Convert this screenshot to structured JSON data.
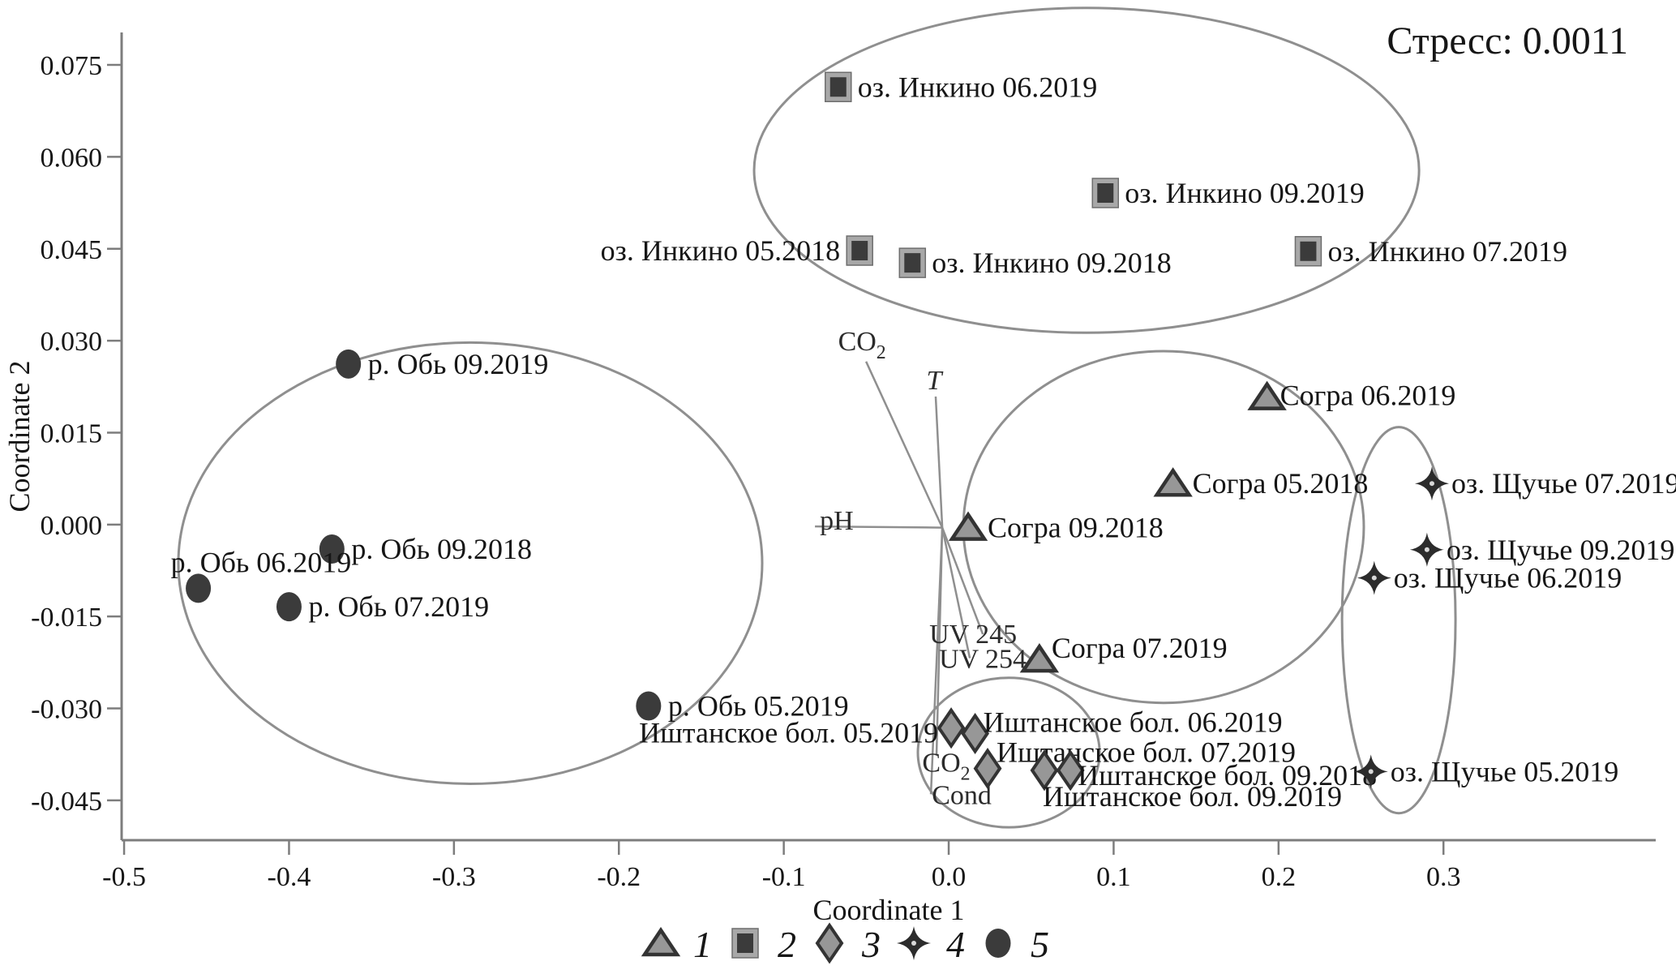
{
  "chart_data": {
    "type": "scatter",
    "stress_label": "Стресс: 0.0011",
    "xlabel": "Coordinate 1",
    "ylabel": "Coordinate 2",
    "x_domain": [
      -0.5015,
      0.4287
    ],
    "y_domain": [
      -0.0515,
      0.0803
    ],
    "grid": false,
    "x_ticks": {
      "values": [
        -0.5,
        -0.4,
        -0.3,
        -0.2,
        -0.1,
        0.0,
        0.1,
        0.2,
        0.3
      ],
      "labels": [
        "-0.5",
        "-0.4",
        "-0.3",
        "-0.2",
        "-0.1",
        "0.0",
        "0.1",
        "0.2",
        "0.3"
      ]
    },
    "y_ticks": {
      "values": [
        0.075,
        0.06,
        0.045,
        0.03,
        0.015,
        0.0,
        -0.015,
        -0.03,
        -0.045
      ],
      "labels": [
        "0.075",
        "0.060",
        "0.045",
        "0.030",
        "0.015",
        "0.000",
        "-0.015",
        "-0.030",
        "-0.045"
      ]
    },
    "series": [
      {
        "id": "1",
        "name": "Согра",
        "marker": "triangle",
        "points": [
          {
            "x": 0.193,
            "y": 0.0208,
            "label": "Согра 06.2019",
            "side": "right",
            "dx": -8,
            "dy": -2
          },
          {
            "x": 0.136,
            "y": 0.0067,
            "label": "Согра 05.2018",
            "side": "right"
          },
          {
            "x": 0.0118,
            "y": -0.0005,
            "label": "Согра 09.2018",
            "side": "right"
          },
          {
            "x": 0.055,
            "y": -0.022,
            "label": "Согра 07.2019",
            "side": "right",
            "dx": -9,
            "dy": -14
          }
        ]
      },
      {
        "id": "2",
        "name": "оз. Инкино",
        "marker": "square",
        "points": [
          {
            "x": -0.067,
            "y": 0.0714,
            "label": "оз. Инкино 06.2019",
            "side": "right"
          },
          {
            "x": 0.095,
            "y": 0.0541,
            "label": "оз. Инкино 09.2019",
            "side": "right"
          },
          {
            "x": -0.054,
            "y": 0.0447,
            "label": "оз. Инкино 05.2018",
            "side": "left"
          },
          {
            "x": -0.022,
            "y": 0.0427,
            "label": "оз. Инкино 09.2018",
            "side": "right"
          },
          {
            "x": 0.218,
            "y": 0.0446,
            "label": "оз. Инкино 07.2019",
            "side": "right"
          }
        ]
      },
      {
        "id": "3",
        "name": "Иштанское бол.",
        "marker": "diamond",
        "points": [
          {
            "x": 0.0015,
            "y": -0.0332,
            "label": "Иштанское бол. 05.2019",
            "side": "left",
            "dx": 8,
            "dy": 6
          },
          {
            "x": 0.016,
            "y": -0.0341,
            "label": "Иштанское бол. 06.2019",
            "side": "right",
            "dx": -14,
            "dy": -14
          },
          {
            "x": 0.0236,
            "y": -0.0398,
            "label": "Иштанское бол. 07.2019",
            "side": "right",
            "dx": -13,
            "dy": -20
          },
          {
            "x": 0.0738,
            "y": -0.0401,
            "label": "Иштанское бол. 09.2018",
            "side": "right",
            "dx": -15,
            "dy": 6
          },
          {
            "x": 0.058,
            "y": -0.0401,
            "label": "Иштанское бол. 09.2019",
            "side": "below-right"
          }
        ]
      },
      {
        "id": "4",
        "name": "оз. Щучье",
        "marker": "star",
        "points": [
          {
            "x": 0.293,
            "y": 0.0067,
            "label": "оз. Щучье 07.2019",
            "side": "right"
          },
          {
            "x": 0.29,
            "y": -0.0041,
            "label": "оз. Щучье 09.2019",
            "side": "right"
          },
          {
            "x": 0.258,
            "y": -0.0087,
            "label": "оз. Щучье 06.2019",
            "side": "right"
          },
          {
            "x": 0.256,
            "y": -0.0403,
            "label": "оз. Щучье 05.2019",
            "side": "right"
          }
        ]
      },
      {
        "id": "5",
        "name": "р. Обь",
        "marker": "circle",
        "points": [
          {
            "x": -0.364,
            "y": 0.0262,
            "label": "р. Обь 09.2019",
            "side": "right"
          },
          {
            "x": -0.374,
            "y": -0.004,
            "label": "р. Обь 09.2018",
            "side": "right"
          },
          {
            "x": -0.455,
            "y": -0.0104,
            "label": "р. Обь 06.2019",
            "side": "above"
          },
          {
            "x": -0.4,
            "y": -0.0134,
            "label": "р. Обь 07.2019",
            "side": "right"
          },
          {
            "x": -0.182,
            "y": -0.0296,
            "label": "р. Обь 05.2019",
            "side": "right"
          }
        ]
      }
    ],
    "ellipses": [
      {
        "group": "оз. Инкино",
        "cx": 0.0836,
        "cy": 0.0578,
        "rx": 0.2016,
        "ry": 0.0265
      },
      {
        "group": "р. Обь",
        "cx": -0.2901,
        "cy": -0.0063,
        "rx": 0.177,
        "ry": 0.036
      },
      {
        "group": "Согра",
        "cx": 0.1303,
        "cy": -0.0004,
        "rx": 0.1214,
        "ry": 0.0287
      },
      {
        "group": "Иштанское бол.",
        "cx": 0.0364,
        "cy": -0.0372,
        "rx": 0.0551,
        "ry": 0.0122
      },
      {
        "group": "оз. Щучье",
        "cx": 0.2729,
        "cy": -0.0156,
        "rx": 0.0344,
        "ry": 0.0315
      }
    ],
    "vectors": {
      "origin": {
        "x": -0.0039,
        "y": -0.0005
      },
      "items": [
        {
          "text": "pH",
          "tip": {
            "x": -0.0811,
            "y": -0.0003
          },
          "anchor": "start",
          "ldx": 6,
          "ldy": 4
        },
        {
          "text": "CO",
          "sub": "2",
          "tip": {
            "x": -0.0501,
            "y": 0.0266
          },
          "anchor": "middle",
          "ldx": -5,
          "ldy": -14
        },
        {
          "text": "T",
          "italic": true,
          "tip": {
            "x": -0.0079,
            "y": 0.0209
          },
          "anchor": "middle",
          "ldx": -2,
          "ldy": -9
        },
        {
          "text": "UV 245",
          "tip": {
            "x": 0.0207,
            "y": -0.0179
          },
          "anchor": "middle",
          "ldx": -12,
          "ldy": 11
        },
        {
          "text": "UV 254",
          "tip": {
            "x": 0.0128,
            "y": -0.0218
          },
          "anchor": "middle",
          "ldx": 16,
          "ldy": 12
        },
        {
          "text": "CO",
          "sub": "2",
          "tip": {
            "x": -0.0074,
            "y": -0.0377
          },
          "anchor": "middle",
          "ldx": 12,
          "ldy": 20
        },
        {
          "text": "Cond",
          "tip": {
            "x": -0.0108,
            "y": -0.044
          },
          "anchor": "middle",
          "ldx": 38,
          "ldy": 12
        }
      ]
    },
    "legend": [
      {
        "marker": "triangle",
        "label": "1"
      },
      {
        "marker": "square",
        "label": "2"
      },
      {
        "marker": "diamond",
        "label": "3"
      },
      {
        "marker": "star",
        "label": "4"
      },
      {
        "marker": "circle",
        "label": "5"
      }
    ]
  },
  "colors": {
    "dark_marker": "#3b3b3b",
    "gray_fill": "#979797",
    "dark_outline": "#333333",
    "square_frame": "#a8a8a8",
    "ellipse_stroke": "#8f8f8f",
    "vector_stroke": "#8f8f8f",
    "axis_stroke": "#7d7d7d",
    "text": "#161616"
  }
}
